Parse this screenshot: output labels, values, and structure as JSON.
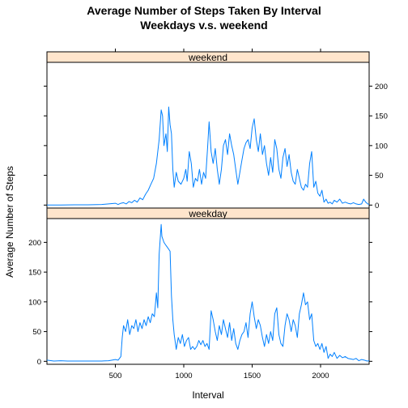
{
  "chart_data": {
    "type": "line",
    "title_line1": "Average Number of Steps Taken By Interval",
    "title_line2": "Weekdays v.s. weekend",
    "xlabel": "Interval",
    "ylabel": "Average Number of Steps",
    "xlim": [
      0,
      2355
    ],
    "ylim": [
      -5,
      240
    ],
    "x_ticks": [
      500,
      1000,
      1500,
      2000
    ],
    "y_ticks": [
      0,
      50,
      100,
      150,
      200
    ],
    "line_color": "#0080ff",
    "strip_color": "#ffe5cc",
    "panels": [
      {
        "name": "weekend",
        "points": [
          [
            0,
            0
          ],
          [
            100,
            0
          ],
          [
            200,
            0.5
          ],
          [
            300,
            0.5
          ],
          [
            400,
            1
          ],
          [
            450,
            2
          ],
          [
            500,
            3
          ],
          [
            520,
            1
          ],
          [
            540,
            3
          ],
          [
            560,
            4
          ],
          [
            580,
            2
          ],
          [
            600,
            6
          ],
          [
            620,
            4
          ],
          [
            640,
            8
          ],
          [
            660,
            5
          ],
          [
            680,
            12
          ],
          [
            700,
            9
          ],
          [
            720,
            18
          ],
          [
            740,
            25
          ],
          [
            760,
            35
          ],
          [
            780,
            45
          ],
          [
            800,
            70
          ],
          [
            820,
            110
          ],
          [
            835,
            160
          ],
          [
            845,
            150
          ],
          [
            855,
            100
          ],
          [
            870,
            120
          ],
          [
            880,
            90
          ],
          [
            890,
            165
          ],
          [
            900,
            135
          ],
          [
            910,
            120
          ],
          [
            920,
            60
          ],
          [
            930,
            30
          ],
          [
            945,
            55
          ],
          [
            960,
            40
          ],
          [
            980,
            35
          ],
          [
            1000,
            45
          ],
          [
            1015,
            60
          ],
          [
            1025,
            40
          ],
          [
            1040,
            90
          ],
          [
            1055,
            70
          ],
          [
            1070,
            30
          ],
          [
            1085,
            45
          ],
          [
            1100,
            40
          ],
          [
            1115,
            60
          ],
          [
            1130,
            35
          ],
          [
            1145,
            55
          ],
          [
            1160,
            45
          ],
          [
            1175,
            100
          ],
          [
            1185,
            140
          ],
          [
            1200,
            90
          ],
          [
            1215,
            70
          ],
          [
            1230,
            95
          ],
          [
            1245,
            60
          ],
          [
            1260,
            35
          ],
          [
            1275,
            60
          ],
          [
            1290,
            100
          ],
          [
            1305,
            110
          ],
          [
            1320,
            85
          ],
          [
            1335,
            120
          ],
          [
            1350,
            100
          ],
          [
            1365,
            85
          ],
          [
            1380,
            60
          ],
          [
            1395,
            35
          ],
          [
            1410,
            55
          ],
          [
            1425,
            75
          ],
          [
            1440,
            95
          ],
          [
            1455,
            105
          ],
          [
            1470,
            110
          ],
          [
            1485,
            95
          ],
          [
            1500,
            130
          ],
          [
            1515,
            145
          ],
          [
            1530,
            110
          ],
          [
            1545,
            90
          ],
          [
            1560,
            120
          ],
          [
            1575,
            85
          ],
          [
            1590,
            100
          ],
          [
            1605,
            70
          ],
          [
            1620,
            50
          ],
          [
            1635,
            80
          ],
          [
            1650,
            55
          ],
          [
            1665,
            110
          ],
          [
            1680,
            95
          ],
          [
            1695,
            60
          ],
          [
            1710,
            45
          ],
          [
            1725,
            80
          ],
          [
            1740,
            95
          ],
          [
            1755,
            65
          ],
          [
            1770,
            85
          ],
          [
            1785,
            55
          ],
          [
            1800,
            40
          ],
          [
            1815,
            35
          ],
          [
            1830,
            60
          ],
          [
            1845,
            45
          ],
          [
            1860,
            30
          ],
          [
            1875,
            25
          ],
          [
            1890,
            35
          ],
          [
            1905,
            30
          ],
          [
            1920,
            70
          ],
          [
            1935,
            90
          ],
          [
            1950,
            30
          ],
          [
            1965,
            40
          ],
          [
            1980,
            20
          ],
          [
            1995,
            15
          ],
          [
            2010,
            25
          ],
          [
            2025,
            5
          ],
          [
            2040,
            10
          ],
          [
            2055,
            3
          ],
          [
            2070,
            5
          ],
          [
            2085,
            2
          ],
          [
            2100,
            8
          ],
          [
            2120,
            5
          ],
          [
            2140,
            10
          ],
          [
            2160,
            3
          ],
          [
            2180,
            5
          ],
          [
            2200,
            3
          ],
          [
            2220,
            2
          ],
          [
            2240,
            4
          ],
          [
            2260,
            2
          ],
          [
            2280,
            1
          ],
          [
            2300,
            2
          ],
          [
            2315,
            10
          ],
          [
            2330,
            5
          ],
          [
            2345,
            2
          ],
          [
            2355,
            1
          ]
        ]
      },
      {
        "name": "weekday",
        "points": [
          [
            0,
            2
          ],
          [
            50,
            0.5
          ],
          [
            100,
            1
          ],
          [
            150,
            0.5
          ],
          [
            200,
            0.5
          ],
          [
            250,
            0.5
          ],
          [
            300,
            0.5
          ],
          [
            350,
            0.5
          ],
          [
            400,
            0.5
          ],
          [
            450,
            1
          ],
          [
            500,
            3
          ],
          [
            520,
            2
          ],
          [
            540,
            8
          ],
          [
            550,
            40
          ],
          [
            560,
            60
          ],
          [
            575,
            50
          ],
          [
            590,
            70
          ],
          [
            605,
            45
          ],
          [
            620,
            60
          ],
          [
            635,
            55
          ],
          [
            650,
            70
          ],
          [
            665,
            50
          ],
          [
            680,
            65
          ],
          [
            695,
            55
          ],
          [
            710,
            70
          ],
          [
            725,
            60
          ],
          [
            740,
            75
          ],
          [
            755,
            65
          ],
          [
            770,
            80
          ],
          [
            785,
            75
          ],
          [
            800,
            115
          ],
          [
            810,
            90
          ],
          [
            820,
            180
          ],
          [
            835,
            230
          ],
          [
            840,
            210
          ],
          [
            855,
            200
          ],
          [
            870,
            195
          ],
          [
            885,
            190
          ],
          [
            900,
            185
          ],
          [
            910,
            110
          ],
          [
            920,
            70
          ],
          [
            930,
            45
          ],
          [
            945,
            20
          ],
          [
            960,
            40
          ],
          [
            975,
            30
          ],
          [
            990,
            45
          ],
          [
            1005,
            25
          ],
          [
            1020,
            35
          ],
          [
            1035,
            40
          ],
          [
            1050,
            20
          ],
          [
            1065,
            25
          ],
          [
            1080,
            20
          ],
          [
            1095,
            25
          ],
          [
            1110,
            35
          ],
          [
            1125,
            28
          ],
          [
            1140,
            35
          ],
          [
            1155,
            25
          ],
          [
            1170,
            30
          ],
          [
            1185,
            20
          ],
          [
            1200,
            85
          ],
          [
            1215,
            70
          ],
          [
            1230,
            50
          ],
          [
            1245,
            35
          ],
          [
            1260,
            60
          ],
          [
            1275,
            45
          ],
          [
            1290,
            70
          ],
          [
            1305,
            55
          ],
          [
            1320,
            40
          ],
          [
            1335,
            65
          ],
          [
            1350,
            35
          ],
          [
            1365,
            55
          ],
          [
            1380,
            30
          ],
          [
            1395,
            20
          ],
          [
            1410,
            35
          ],
          [
            1425,
            45
          ],
          [
            1440,
            50
          ],
          [
            1455,
            65
          ],
          [
            1470,
            40
          ],
          [
            1485,
            80
          ],
          [
            1500,
            100
          ],
          [
            1515,
            75
          ],
          [
            1530,
            55
          ],
          [
            1545,
            70
          ],
          [
            1560,
            60
          ],
          [
            1575,
            40
          ],
          [
            1590,
            25
          ],
          [
            1605,
            45
          ],
          [
            1620,
            30
          ],
          [
            1635,
            50
          ],
          [
            1650,
            35
          ],
          [
            1665,
            80
          ],
          [
            1680,
            90
          ],
          [
            1695,
            45
          ],
          [
            1710,
            30
          ],
          [
            1725,
            25
          ],
          [
            1740,
            60
          ],
          [
            1755,
            80
          ],
          [
            1770,
            70
          ],
          [
            1785,
            50
          ],
          [
            1800,
            70
          ],
          [
            1815,
            60
          ],
          [
            1830,
            40
          ],
          [
            1845,
            80
          ],
          [
            1860,
            95
          ],
          [
            1875,
            115
          ],
          [
            1890,
            95
          ],
          [
            1905,
            100
          ],
          [
            1920,
            70
          ],
          [
            1935,
            80
          ],
          [
            1950,
            35
          ],
          [
            1965,
            25
          ],
          [
            1980,
            30
          ],
          [
            1995,
            20
          ],
          [
            2010,
            30
          ],
          [
            2025,
            15
          ],
          [
            2040,
            25
          ],
          [
            2055,
            5
          ],
          [
            2070,
            12
          ],
          [
            2085,
            8
          ],
          [
            2100,
            15
          ],
          [
            2120,
            5
          ],
          [
            2140,
            10
          ],
          [
            2160,
            6
          ],
          [
            2180,
            8
          ],
          [
            2200,
            5
          ],
          [
            2220,
            4
          ],
          [
            2240,
            3
          ],
          [
            2260,
            5
          ],
          [
            2280,
            1
          ],
          [
            2300,
            3
          ],
          [
            2320,
            2
          ],
          [
            2340,
            0.5
          ],
          [
            2355,
            1
          ]
        ]
      }
    ]
  }
}
